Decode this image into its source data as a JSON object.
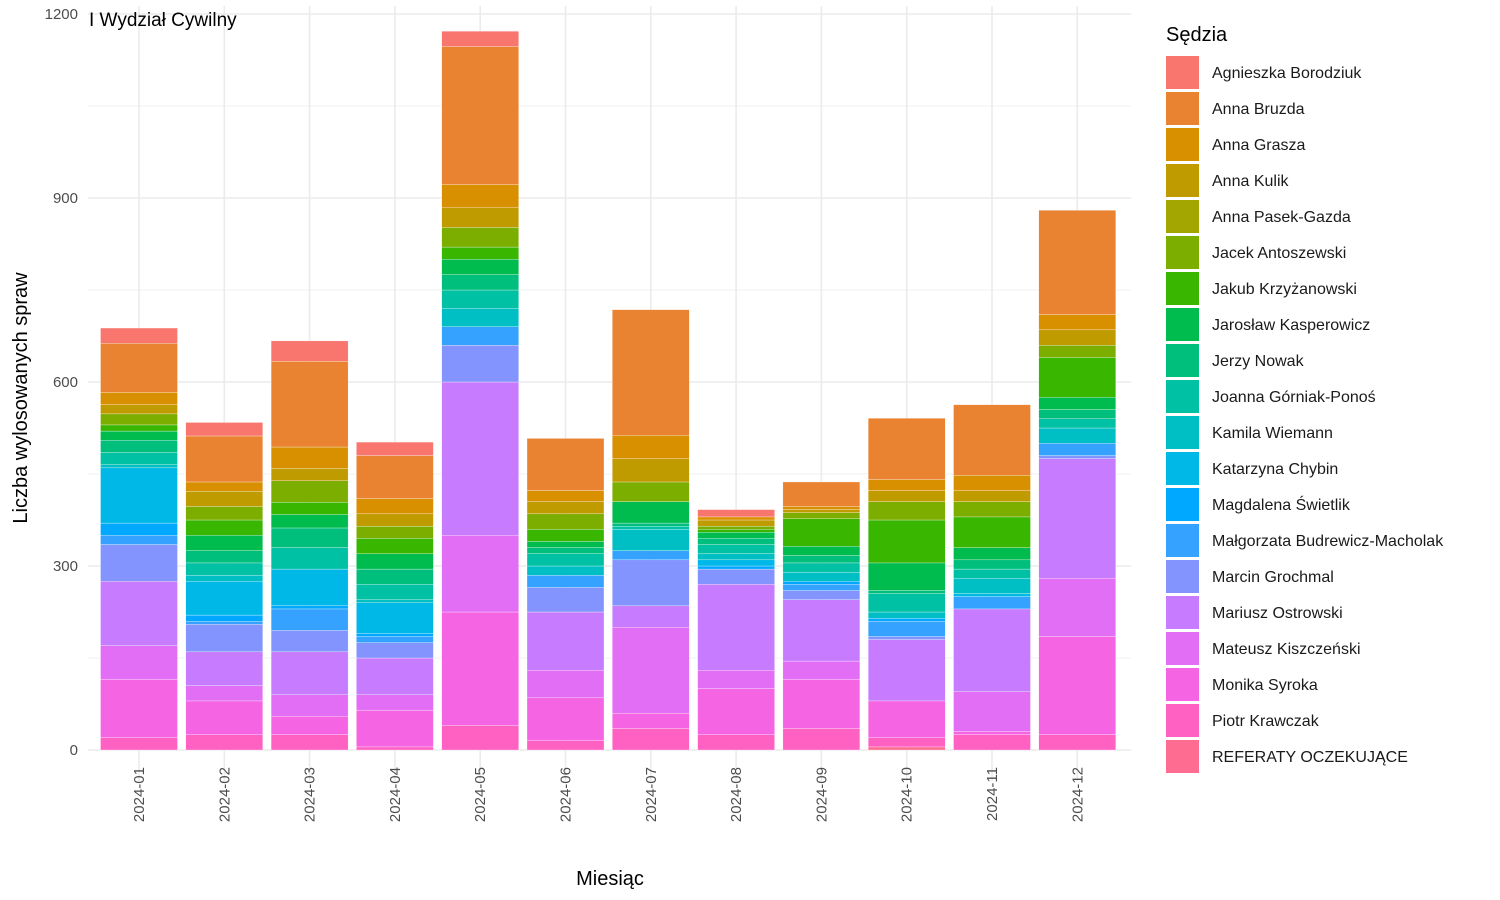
{
  "chart_data": {
    "type": "bar",
    "stacked": true,
    "title": "I Wydział Cywilny",
    "xlabel": "Miesiąc",
    "ylabel": "Liczba wylosowanych spraw",
    "ylim": [
      0,
      1200
    ],
    "yticks": [
      0,
      300,
      600,
      900,
      1200
    ],
    "grid": true,
    "legend_title": "Sędzia",
    "legend_position": "right",
    "categories": [
      "2024-01",
      "2024-02",
      "2024-03",
      "2024-04",
      "2024-05",
      "2024-06",
      "2024-07",
      "2024-08",
      "2024-09",
      "2024-10",
      "2024-11",
      "2024-12"
    ],
    "series": [
      {
        "name": "Agnieszka Borodziuk",
        "color": "#F8766D",
        "values": [
          25,
          22,
          33,
          22,
          25,
          0,
          0,
          12,
          0,
          0,
          0,
          0
        ]
      },
      {
        "name": "Anna Bruzda",
        "color": "#EA8331",
        "values": [
          80,
          75,
          140,
          70,
          225,
          85,
          205,
          0,
          40,
          100,
          115,
          170
        ]
      },
      {
        "name": "Anna Grasza",
        "color": "#D89000",
        "values": [
          20,
          15,
          35,
          25,
          38,
          18,
          38,
          5,
          5,
          18,
          25,
          25
        ]
      },
      {
        "name": "Anna Kulik",
        "color": "#C09B00",
        "values": [
          15,
          25,
          20,
          20,
          32,
          20,
          38,
          10,
          5,
          18,
          18,
          25
        ]
      },
      {
        "name": "Anna Pasek-Gazda",
        "color": "#A3A500",
        "values": [
          0,
          0,
          0,
          0,
          0,
          0,
          0,
          0,
          0,
          0,
          0,
          0
        ]
      },
      {
        "name": "Jacek Antoszewski",
        "color": "#7CAE00",
        "values": [
          18,
          22,
          35,
          20,
          32,
          25,
          32,
          5,
          10,
          30,
          25,
          20
        ]
      },
      {
        "name": "Jakub Krzyżanowski",
        "color": "#39B600",
        "values": [
          10,
          25,
          20,
          25,
          20,
          20,
          0,
          5,
          45,
          70,
          50,
          65
        ]
      },
      {
        "name": "Jarosław Kasperowicz",
        "color": "#00BB4E",
        "values": [
          15,
          25,
          22,
          25,
          25,
          10,
          35,
          10,
          15,
          45,
          20,
          20
        ]
      },
      {
        "name": "Jerzy Nowak",
        "color": "#00BF7D",
        "values": [
          20,
          20,
          32,
          25,
          25,
          10,
          5,
          10,
          12,
          5,
          15,
          15
        ]
      },
      {
        "name": "Joanna Górniak-Ponoś",
        "color": "#00C1A3",
        "values": [
          20,
          20,
          35,
          25,
          30,
          20,
          5,
          15,
          15,
          30,
          15,
          15
        ]
      },
      {
        "name": "Kamila Wiemann",
        "color": "#00BFC4",
        "values": [
          5,
          10,
          0,
          5,
          30,
          15,
          35,
          10,
          15,
          10,
          25,
          25
        ]
      },
      {
        "name": "Katarzyna Chybin",
        "color": "#00B8E7",
        "values": [
          90,
          55,
          60,
          50,
          0,
          0,
          0,
          10,
          0,
          0,
          5,
          0
        ]
      },
      {
        "name": "Magdalena Świetlik",
        "color": "#00A9FF",
        "values": [
          20,
          10,
          5,
          5,
          0,
          0,
          0,
          5,
          5,
          5,
          0,
          0
        ]
      },
      {
        "name": "Małgorzata Budrewicz-Macholak",
        "color": "#35A2FF",
        "values": [
          15,
          5,
          35,
          10,
          30,
          20,
          15,
          0,
          10,
          25,
          20,
          20
        ]
      },
      {
        "name": "Marcin Grochmal",
        "color": "#8494FF",
        "values": [
          60,
          45,
          35,
          25,
          60,
          40,
          75,
          25,
          15,
          5,
          0,
          5
        ]
      },
      {
        "name": "Mariusz Ostrowski",
        "color": "#C77CFF",
        "values": [
          105,
          55,
          70,
          60,
          250,
          95,
          35,
          140,
          100,
          100,
          135,
          195
        ]
      },
      {
        "name": "Mateusz Kiszczeński",
        "color": "#E36EF6",
        "values": [
          55,
          25,
          35,
          25,
          125,
          45,
          140,
          30,
          30,
          0,
          65,
          95
        ]
      },
      {
        "name": "Monika Syroka",
        "color": "#F564E3",
        "values": [
          95,
          55,
          30,
          60,
          185,
          70,
          25,
          75,
          80,
          60,
          5,
          160
        ]
      },
      {
        "name": "Piotr Krawczak",
        "color": "#FF61C3",
        "values": [
          20,
          25,
          25,
          5,
          40,
          15,
          35,
          25,
          35,
          15,
          25,
          25
        ]
      },
      {
        "name": "REFERATY OCZEKUJĄCE",
        "color": "#FF6C91",
        "values": [
          0,
          0,
          0,
          0,
          0,
          0,
          0,
          0,
          0,
          5,
          0,
          0
        ]
      }
    ]
  }
}
